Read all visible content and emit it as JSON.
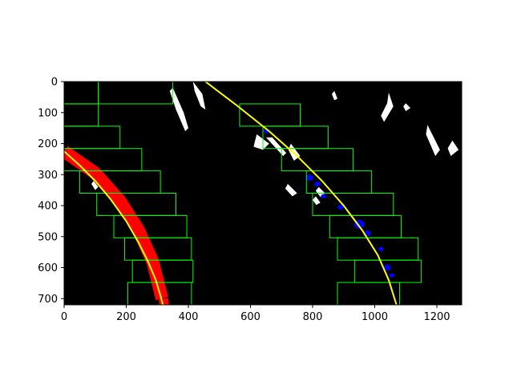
{
  "chart_data": {
    "type": "image-plot",
    "xlim": [
      0,
      1280
    ],
    "ylim": [
      720,
      0
    ],
    "xticks": [
      0,
      200,
      400,
      600,
      800,
      1000,
      1200
    ],
    "yticks": [
      0,
      100,
      200,
      300,
      400,
      500,
      600,
      700
    ],
    "xtick_labels": [
      "0",
      "200",
      "400",
      "600",
      "800",
      "1000",
      "1200"
    ],
    "ytick_labels": [
      "0",
      "100",
      "200",
      "300",
      "400",
      "500",
      "600",
      "700"
    ],
    "background_color": "#000000",
    "colors": {
      "left_lane_pixels": "#ff0000",
      "right_lane_pixels": "#0000ff",
      "other_pixels": "#ffffff",
      "windows": "#00ff00",
      "fit_lines": "#ffff00"
    },
    "left_windows": [
      {
        "x": [
          0,
          110
        ],
        "y": [
          0,
          72
        ]
      },
      {
        "x": [
          0,
          110
        ],
        "y": [
          72,
          144
        ]
      },
      {
        "x": [
          0,
          180
        ],
        "y": [
          144,
          216
        ]
      },
      {
        "x": [
          0,
          250
        ],
        "y": [
          216,
          288
        ]
      },
      {
        "x": [
          50,
          310
        ],
        "y": [
          288,
          360
        ]
      },
      {
        "x": [
          105,
          360
        ],
        "y": [
          360,
          432
        ]
      },
      {
        "x": [
          160,
          395
        ],
        "y": [
          432,
          504
        ]
      },
      {
        "x": [
          195,
          410
        ],
        "y": [
          504,
          576
        ]
      },
      {
        "x": [
          220,
          415
        ],
        "y": [
          576,
          648
        ]
      },
      {
        "x": [
          205,
          410
        ],
        "y": [
          648,
          720
        ]
      }
    ],
    "right_windows": [
      {
        "x": [
          110,
          350
        ],
        "y": [
          0,
          72
        ]
      },
      {
        "x": [
          565,
          760
        ],
        "y": [
          72,
          144
        ]
      },
      {
        "x": [
          640,
          850
        ],
        "y": [
          144,
          216
        ]
      },
      {
        "x": [
          700,
          930
        ],
        "y": [
          216,
          288
        ]
      },
      {
        "x": [
          780,
          990
        ],
        "y": [
          288,
          360
        ]
      },
      {
        "x": [
          800,
          1060
        ],
        "y": [
          360,
          432
        ]
      },
      {
        "x": [
          855,
          1085
        ],
        "y": [
          432,
          504
        ]
      },
      {
        "x": [
          880,
          1140
        ],
        "y": [
          504,
          576
        ]
      },
      {
        "x": [
          935,
          1150
        ],
        "y": [
          576,
          648
        ]
      },
      {
        "x": [
          880,
          1080
        ],
        "y": [
          648,
          720
        ]
      }
    ],
    "left_fit": {
      "x": [
        0,
        50,
        100,
        150,
        200,
        240,
        270,
        295,
        310,
        318
      ],
      "y": [
        225,
        270,
        320,
        380,
        450,
        520,
        580,
        640,
        690,
        720
      ]
    },
    "right_fit": {
      "x": [
        455,
        560,
        660,
        750,
        830,
        900,
        960,
        1010,
        1045,
        1070
      ],
      "y": [
        0,
        80,
        160,
        240,
        320,
        400,
        480,
        560,
        640,
        720
      ]
    },
    "left_pixels": [
      {
        "x": [
          0,
          100,
          180,
          240,
          285,
          315
        ],
        "y": [
          225,
          295,
          385,
          480,
          580,
          700
        ],
        "width": 16
      },
      {
        "x": [
          320,
          322
        ],
        "y": [
          700,
          720
        ],
        "width": 12
      }
    ],
    "right_pixels": [
      {
        "x": 650,
        "y": 160,
        "r": 7
      },
      {
        "x": 790,
        "y": 310,
        "r": 10
      },
      {
        "x": 815,
        "y": 330,
        "r": 8
      },
      {
        "x": 835,
        "y": 370,
        "r": 7
      },
      {
        "x": 890,
        "y": 405,
        "r": 8
      },
      {
        "x": 950,
        "y": 460,
        "r": 14
      },
      {
        "x": 975,
        "y": 490,
        "r": 10
      },
      {
        "x": 1020,
        "y": 540,
        "r": 7
      },
      {
        "x": 1040,
        "y": 600,
        "r": 10
      },
      {
        "x": 1055,
        "y": 625,
        "r": 7
      }
    ],
    "other_pixels": [
      {
        "points": [
          [
            340,
            30
          ],
          [
            360,
            90
          ],
          [
            390,
            160
          ],
          [
            400,
            150
          ],
          [
            385,
            100
          ],
          [
            350,
            20
          ]
        ]
      },
      {
        "points": [
          [
            415,
            0
          ],
          [
            445,
            40
          ],
          [
            455,
            90
          ],
          [
            440,
            80
          ],
          [
            420,
            30
          ]
        ]
      },
      {
        "points": [
          [
            650,
            180
          ],
          [
            705,
            240
          ],
          [
            715,
            230
          ],
          [
            670,
            180
          ]
        ]
      },
      {
        "points": [
          [
            620,
            170
          ],
          [
            660,
            200
          ],
          [
            640,
            220
          ],
          [
            610,
            210
          ]
        ]
      },
      {
        "points": [
          [
            870,
            30
          ],
          [
            880,
            55
          ],
          [
            870,
            60
          ],
          [
            862,
            40
          ]
        ]
      },
      {
        "points": [
          [
            1045,
            35
          ],
          [
            1060,
            80
          ],
          [
            1030,
            130
          ],
          [
            1020,
            110
          ],
          [
            1040,
            70
          ]
        ]
      },
      {
        "points": [
          [
            1100,
            70
          ],
          [
            1115,
            85
          ],
          [
            1100,
            95
          ],
          [
            1092,
            80
          ]
        ]
      },
      {
        "points": [
          [
            1250,
            190
          ],
          [
            1270,
            220
          ],
          [
            1245,
            240
          ],
          [
            1235,
            215
          ]
        ]
      },
      {
        "points": [
          [
            1170,
            140
          ],
          [
            1210,
            220
          ],
          [
            1195,
            240
          ],
          [
            1165,
            170
          ]
        ]
      },
      {
        "points": [
          [
            45,
            255
          ],
          [
            95,
            290
          ],
          [
            85,
            300
          ],
          [
            40,
            270
          ]
        ]
      },
      {
        "points": [
          [
            95,
            320
          ],
          [
            110,
            340
          ],
          [
            100,
            350
          ],
          [
            88,
            330
          ]
        ]
      },
      {
        "points": [
          [
            720,
            330
          ],
          [
            750,
            360
          ],
          [
            735,
            370
          ],
          [
            712,
            345
          ]
        ]
      },
      {
        "points": [
          [
            820,
            340
          ],
          [
            840,
            360
          ],
          [
            825,
            372
          ],
          [
            810,
            352
          ]
        ]
      },
      {
        "points": [
          [
            730,
            200
          ],
          [
            760,
            240
          ],
          [
            740,
            255
          ],
          [
            722,
            220
          ]
        ]
      },
      {
        "points": [
          [
            810,
            370
          ],
          [
            825,
            390
          ],
          [
            812,
            398
          ],
          [
            800,
            382
          ]
        ]
      }
    ]
  }
}
